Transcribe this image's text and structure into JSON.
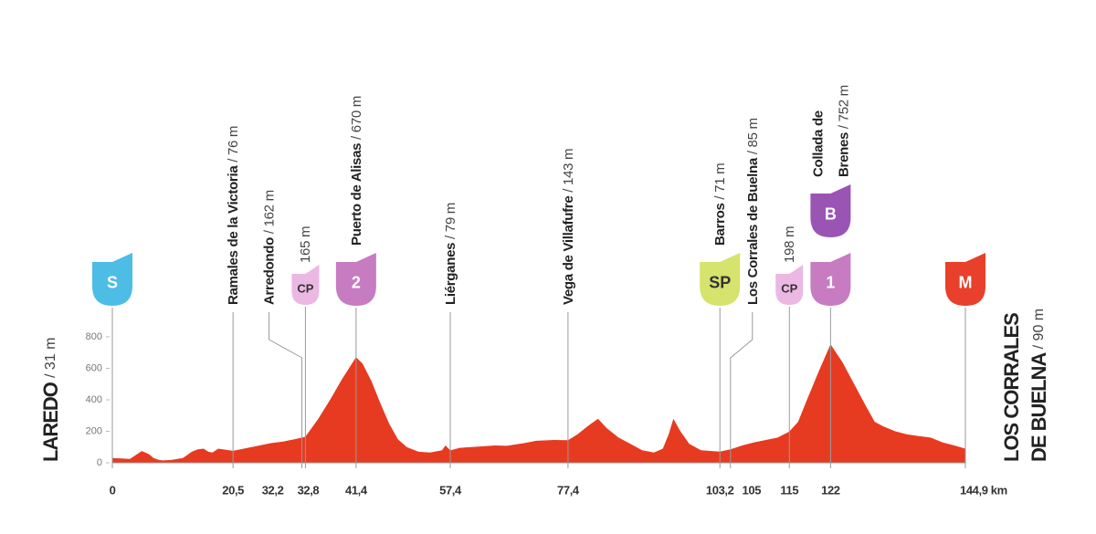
{
  "chart_data": {
    "type": "area",
    "x": [
      0,
      1.5,
      3,
      4.2,
      5,
      5.6,
      6.2,
      7,
      7.8,
      8.5,
      10,
      12,
      13.5,
      14.5,
      15.5,
      16.3,
      17,
      18,
      20.5,
      23,
      25,
      27,
      29,
      31,
      32.8,
      35,
      37,
      39,
      41.4,
      42.5,
      44,
      45.5,
      47,
      48.5,
      50,
      52,
      54,
      56,
      56.6,
      57.4,
      59,
      61,
      63,
      65,
      67,
      70,
      72,
      75,
      77.4,
      79,
      81,
      82.5,
      84,
      86,
      88,
      90,
      92,
      93.5,
      94.5,
      95.3,
      96.5,
      98,
      100,
      103.2,
      105,
      107,
      109,
      111,
      113,
      115,
      116.5,
      118,
      120,
      122,
      124,
      126,
      128,
      129.5,
      131,
      133,
      135,
      137,
      139,
      141,
      143,
      144.9
    ],
    "values": [
      31,
      28,
      25,
      55,
      75,
      65,
      55,
      30,
      20,
      15,
      18,
      30,
      70,
      85,
      90,
      70,
      65,
      90,
      76,
      95,
      110,
      125,
      135,
      150,
      165,
      280,
      400,
      530,
      670,
      630,
      520,
      380,
      250,
      150,
      100,
      70,
      65,
      80,
      110,
      79,
      95,
      100,
      105,
      110,
      108,
      125,
      140,
      145,
      143,
      180,
      240,
      280,
      220,
      160,
      120,
      80,
      65,
      90,
      180,
      280,
      200,
      120,
      80,
      71,
      85,
      110,
      130,
      145,
      160,
      198,
      260,
      400,
      580,
      752,
      640,
      500,
      360,
      260,
      230,
      200,
      180,
      170,
      160,
      130,
      110,
      90
    ],
    "color": "#e63b21",
    "climb_color": "#a52a1c",
    "xlim": [
      0,
      144.9
    ],
    "ylim": [
      0,
      800
    ],
    "yticks": [
      0,
      200,
      400,
      600,
      800
    ],
    "xticks": [
      0,
      {
        "value": 20.5,
        "label": "20,5"
      },
      {
        "value": 32.2,
        "label": "32,2"
      },
      {
        "value": 32.8,
        "label": "32,8"
      },
      {
        "value": 41.4,
        "label": "41,4"
      },
      {
        "value": 57.4,
        "label": "57,4"
      },
      {
        "value": 77.4,
        "label": "77,4"
      },
      {
        "value": 103.2,
        "label": "103,2"
      },
      105,
      115,
      122,
      {
        "value": 144.9,
        "label": "144,9 km"
      }
    ],
    "start": {
      "name": [
        "LAREDO"
      ],
      "altitude_label": "/ 31 m"
    },
    "finish": {
      "name": [
        "LOS CORRALES",
        "DE BUELNA"
      ],
      "altitude_label": "/ 90 m"
    },
    "waypoints": [
      {
        "km": 20.5,
        "name": [
          "Ramales de la Victoria"
        ],
        "altitude_label": "/ 76 m"
      },
      {
        "km": 32.2,
        "name": [
          "Arredondo"
        ],
        "altitude_label": "/ 162 m"
      },
      {
        "km": 41.4,
        "name": [
          "Puerto de Alisas"
        ],
        "altitude_label": "/ 670 m"
      },
      {
        "km": 57.4,
        "name": [
          "Liérganes"
        ],
        "altitude_label": "/ 79 m"
      },
      {
        "km": 77.4,
        "name": [
          "Vega de Villafufre"
        ],
        "altitude_label": "/ 143 m"
      },
      {
        "km": 103.2,
        "name": [
          "Barros"
        ],
        "altitude_label": "/ 71 m"
      },
      {
        "km": 105,
        "name": [
          "Los Corrales de Buelna"
        ],
        "altitude_label": "/ 85 m"
      },
      {
        "km": 122,
        "name": [
          "Collada de",
          "Brenes"
        ],
        "altitude_label": "/ 752 m"
      }
    ],
    "badges": [
      {
        "km": 0,
        "text": "S",
        "color": "#4dbde6",
        "text_color": "#ffffff"
      },
      {
        "km": 32.8,
        "text": "CP",
        "color": "#ebb8e4",
        "text_color": "#333333",
        "altitude_label": "165 m"
      },
      {
        "km": 41.4,
        "text": "2",
        "color": "#c77cc2",
        "text_color": "#ffffff",
        "climb": true
      },
      {
        "km": 103.2,
        "text": "SP",
        "color": "#d6e36c",
        "text_color": "#333333"
      },
      {
        "km": 115,
        "text": "CP",
        "color": "#ebb8e4",
        "text_color": "#333333",
        "altitude_label": "198 m"
      },
      {
        "km": 122,
        "text": "1",
        "color": "#c77cc2",
        "text_color": "#ffffff",
        "climb": true
      },
      {
        "km": 122,
        "text": "B",
        "color": "#9a55b4",
        "text_color": "#ffffff"
      },
      {
        "km": 144.9,
        "text": "M",
        "color": "#e8402a",
        "text_color": "#ffffff"
      }
    ]
  }
}
